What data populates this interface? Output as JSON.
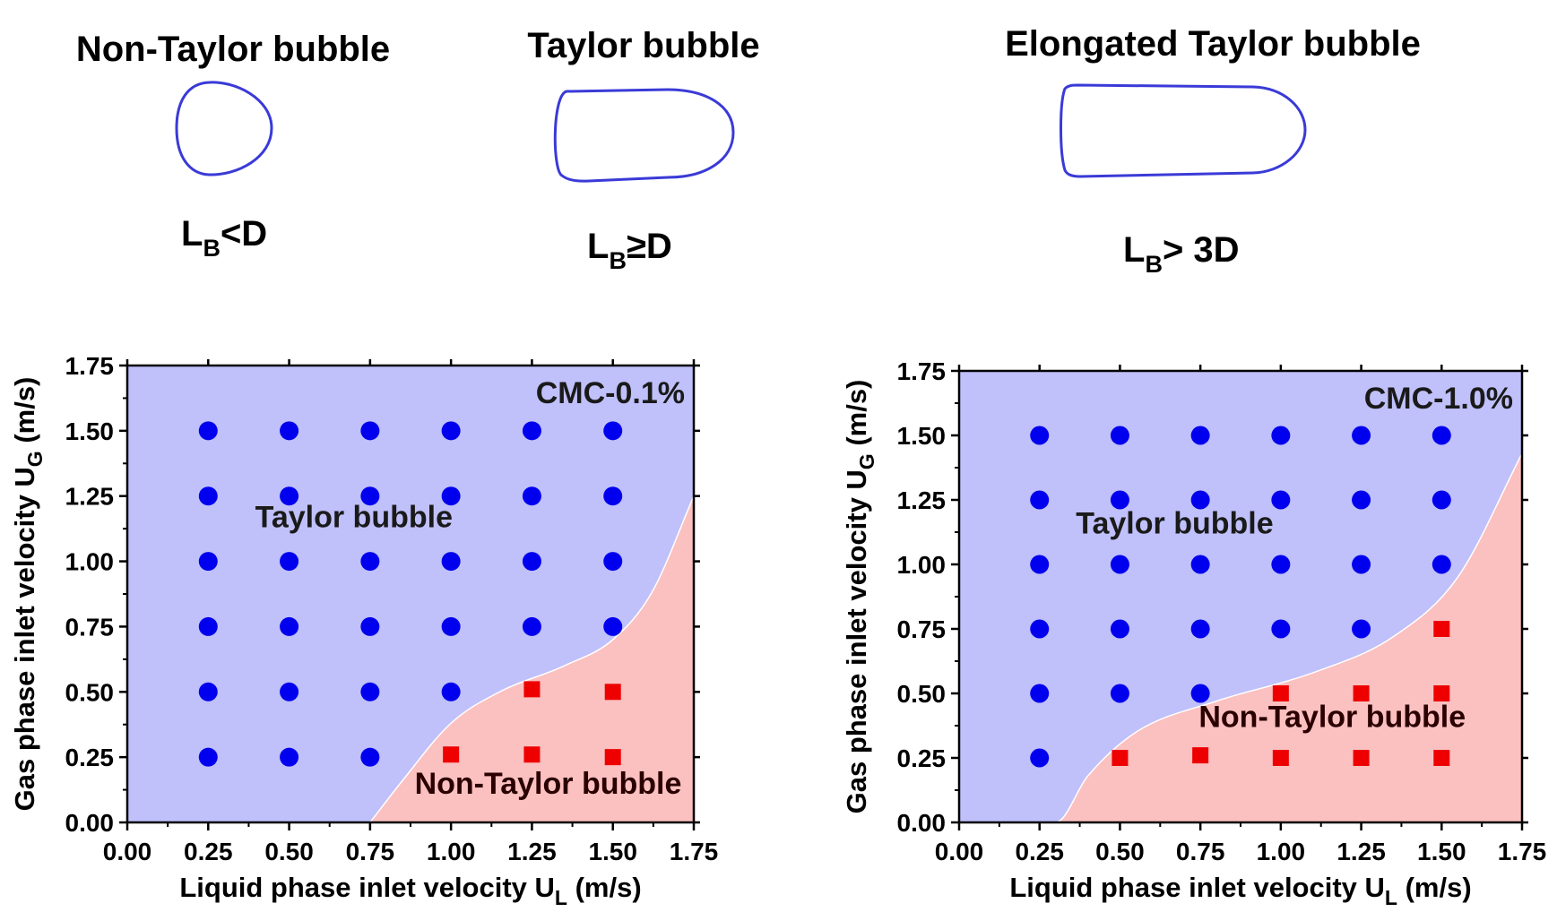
{
  "bubbles": [
    {
      "title": "Non-Taylor bubble",
      "cond_main": "L",
      "cond_sub": "B",
      "cond_rest": "<D"
    },
    {
      "title": "Taylor bubble",
      "cond_main": "L",
      "cond_sub": "B",
      "cond_rest": "≥D"
    },
    {
      "title": "Elongated Taylor bubble",
      "cond_main": "L",
      "cond_sub": "B",
      "cond_rest": "> 3D"
    }
  ],
  "colors": {
    "taylor_region": "#c0c0fb",
    "non_taylor_region": "#fbc0c0",
    "taylor_marker": "#0000ee",
    "non_taylor_marker": "#ee0000",
    "bubble_outline": "#3a3ad8"
  },
  "chart_data": [
    {
      "type": "scatter",
      "annotation": "CMC-0.1%",
      "xlabel_main": "Liquid phase inlet velocity U",
      "xlabel_sub": "L",
      "xlabel_unit": " (m/s)",
      "ylabel_main": "Gas phase inlet velocity U",
      "ylabel_sub": "G",
      "ylabel_unit": " (m/s)",
      "xlim": [
        0,
        1.75
      ],
      "ylim": [
        0,
        1.75
      ],
      "ticks": [
        "0.00",
        "0.25",
        "0.50",
        "0.75",
        "1.00",
        "1.25",
        "1.50",
        "1.75"
      ],
      "regions": [
        {
          "name": "Taylor bubble",
          "label_at": [
            0.7,
            1.13
          ]
        },
        {
          "name": "Non-Taylor bubble",
          "label_at": [
            1.3,
            0.11
          ]
        }
      ],
      "boundary": [
        [
          0.75,
          0.0
        ],
        [
          0.85,
          0.16
        ],
        [
          1.0,
          0.38
        ],
        [
          1.15,
          0.5
        ],
        [
          1.35,
          0.6
        ],
        [
          1.5,
          0.7
        ],
        [
          1.62,
          0.88
        ],
        [
          1.75,
          1.25
        ]
      ],
      "series": [
        {
          "name": "Taylor bubble",
          "marker": "circle",
          "points": [
            [
              0.25,
              1.5
            ],
            [
              0.5,
              1.5
            ],
            [
              0.75,
              1.5
            ],
            [
              1.0,
              1.5
            ],
            [
              1.25,
              1.5
            ],
            [
              1.5,
              1.5
            ],
            [
              0.25,
              1.25
            ],
            [
              0.5,
              1.25
            ],
            [
              0.75,
              1.25
            ],
            [
              1.0,
              1.25
            ],
            [
              1.25,
              1.25
            ],
            [
              1.5,
              1.25
            ],
            [
              0.25,
              1.0
            ],
            [
              0.5,
              1.0
            ],
            [
              0.75,
              1.0
            ],
            [
              1.0,
              1.0
            ],
            [
              1.25,
              1.0
            ],
            [
              1.5,
              1.0
            ],
            [
              0.25,
              0.75
            ],
            [
              0.5,
              0.75
            ],
            [
              0.75,
              0.75
            ],
            [
              1.0,
              0.75
            ],
            [
              1.25,
              0.75
            ],
            [
              1.5,
              0.75
            ],
            [
              0.25,
              0.5
            ],
            [
              0.5,
              0.5
            ],
            [
              0.75,
              0.5
            ],
            [
              1.0,
              0.5
            ],
            [
              0.25,
              0.25
            ],
            [
              0.5,
              0.25
            ],
            [
              0.75,
              0.25
            ]
          ]
        },
        {
          "name": "Non-Taylor bubble",
          "marker": "square",
          "points": [
            [
              1.25,
              0.51
            ],
            [
              1.5,
              0.5
            ],
            [
              1.0,
              0.26
            ],
            [
              1.25,
              0.26
            ],
            [
              1.5,
              0.25
            ]
          ]
        }
      ]
    },
    {
      "type": "scatter",
      "annotation": "CMC-1.0%",
      "xlabel_main": "Liquid phase inlet velocity U",
      "xlabel_sub": "L",
      "xlabel_unit": " (m/s)",
      "ylabel_main": "Gas phase inlet velocity U",
      "ylabel_sub": "G",
      "ylabel_unit": " (m/s)",
      "xlim": [
        0,
        1.75
      ],
      "ylim": [
        0,
        1.75
      ],
      "ticks": [
        "0.00",
        "0.25",
        "0.50",
        "0.75",
        "1.00",
        "1.25",
        "1.50",
        "1.75"
      ],
      "regions": [
        {
          "name": "Taylor bubble",
          "label_at": [
            0.67,
            1.12
          ]
        },
        {
          "name": "Non-Taylor bubble",
          "label_at": [
            1.16,
            0.37
          ]
        }
      ],
      "boundary": [
        [
          0.0,
          0.0
        ],
        [
          0.3,
          0.0
        ],
        [
          0.4,
          0.18
        ],
        [
          0.55,
          0.35
        ],
        [
          0.8,
          0.47
        ],
        [
          1.1,
          0.58
        ],
        [
          1.35,
          0.72
        ],
        [
          1.55,
          0.95
        ],
        [
          1.75,
          1.43
        ]
      ],
      "series": [
        {
          "name": "Taylor bubble",
          "marker": "circle",
          "points": [
            [
              0.25,
              1.5
            ],
            [
              0.5,
              1.5
            ],
            [
              0.75,
              1.5
            ],
            [
              1.0,
              1.5
            ],
            [
              1.25,
              1.5
            ],
            [
              1.5,
              1.5
            ],
            [
              0.25,
              1.25
            ],
            [
              0.5,
              1.25
            ],
            [
              0.75,
              1.25
            ],
            [
              1.0,
              1.25
            ],
            [
              1.25,
              1.25
            ],
            [
              1.5,
              1.25
            ],
            [
              0.25,
              1.0
            ],
            [
              0.5,
              1.0
            ],
            [
              0.75,
              1.0
            ],
            [
              1.0,
              1.0
            ],
            [
              1.25,
              1.0
            ],
            [
              1.5,
              1.0
            ],
            [
              0.25,
              0.75
            ],
            [
              0.5,
              0.75
            ],
            [
              0.75,
              0.75
            ],
            [
              1.0,
              0.75
            ],
            [
              1.25,
              0.75
            ],
            [
              0.25,
              0.5
            ],
            [
              0.5,
              0.5
            ],
            [
              0.75,
              0.5
            ],
            [
              0.25,
              0.25
            ]
          ]
        },
        {
          "name": "Non-Taylor bubble",
          "marker": "square",
          "points": [
            [
              1.5,
              0.75
            ],
            [
              1.0,
              0.5
            ],
            [
              1.25,
              0.5
            ],
            [
              1.5,
              0.5
            ],
            [
              0.5,
              0.25
            ],
            [
              0.75,
              0.26
            ],
            [
              1.0,
              0.25
            ],
            [
              1.25,
              0.25
            ],
            [
              1.5,
              0.25
            ]
          ]
        }
      ]
    }
  ]
}
